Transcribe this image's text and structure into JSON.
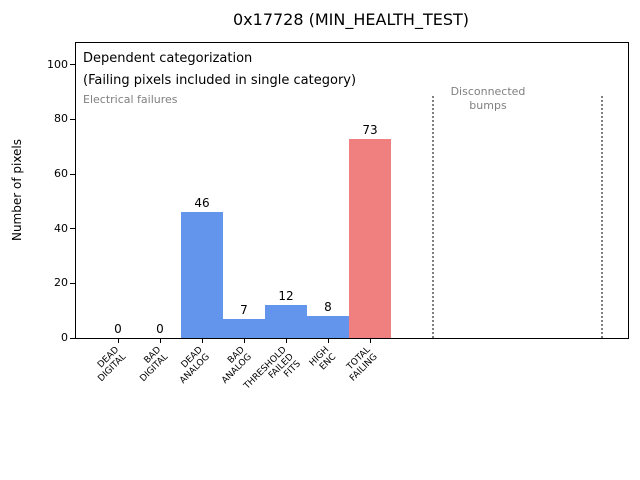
{
  "window": {
    "title": "0x17728 (MIN_HEALTH_TEST)"
  },
  "chart_data": {
    "type": "bar",
    "title": "0x17728 (MIN_HEALTH_TEST)",
    "xlabel": "",
    "ylabel": "Number of pixels",
    "categories": [
      "DEAD\nDIGITAL",
      "BAD\nDIGITAL",
      "DEAD\nANALOG",
      "BAD\nANALOG",
      "THRESHOLD\nFAILED\nFITS",
      "HIGH\nENC",
      "TOTAL\nFAILING"
    ],
    "values": [
      0,
      0,
      46,
      7,
      12,
      8,
      73
    ],
    "bar_value_labels": [
      "0",
      "0",
      "46",
      "7",
      "12",
      "8",
      "73"
    ],
    "bar_colors": [
      "#6495ed",
      "#6495ed",
      "#6495ed",
      "#6495ed",
      "#6495ed",
      "#6495ed",
      "#f08080"
    ],
    "ylim": [
      0,
      108
    ],
    "yticks": [
      0,
      20,
      40,
      60,
      80,
      100
    ],
    "grid": false,
    "legend": null,
    "annotations": [
      {
        "id": "dependent-note",
        "text": "Dependent categorization\n(Failing pixels included in single category)",
        "color": "#000000"
      },
      {
        "id": "electrical-failures",
        "text": "Electrical failures",
        "color": "#808080"
      },
      {
        "id": "disconnected-bumps",
        "text": "Disconnected\nbumps",
        "color": "#808080"
      }
    ],
    "vlines": [
      {
        "x_category": 7.5,
        "style": "dotted",
        "color": "#7f7f7f"
      },
      {
        "x_category": 11.5,
        "style": "dotted",
        "color": "#7f7f7f"
      }
    ]
  },
  "colors": {
    "bar_blue": "#6495ed",
    "bar_red": "#f08080",
    "annotation_gray": "#808080",
    "axis": "#000000",
    "background": "#ffffff"
  }
}
